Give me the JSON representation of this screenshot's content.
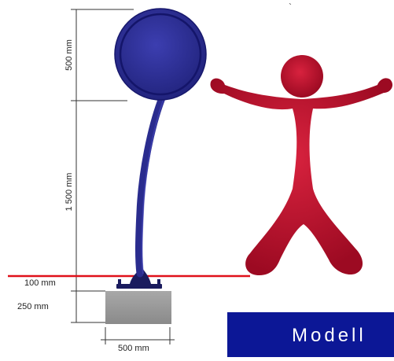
{
  "dimensions": {
    "sign_height": "500 mm",
    "post_height": "1 500 mm",
    "base_plate": "100 mm",
    "foundation_height": "250 mm",
    "foundation_width": "500 mm"
  },
  "model_box": {
    "label": "Modell"
  },
  "stray_mark": "`",
  "colors": {
    "sign_fill": "#2d2f9a",
    "sign_dark": "#1a1b78",
    "figure_fill": "#c8102e",
    "ground_line": "#e0101a",
    "foundation": "#9a9a9a",
    "model_box": "#0c1796"
  }
}
